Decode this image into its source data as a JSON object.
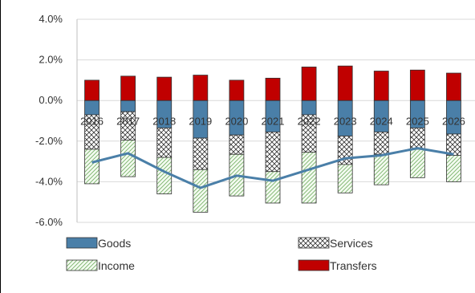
{
  "chart_data": {
    "type": "bar",
    "stacked": true,
    "categories": [
      "2016",
      "2017",
      "2018",
      "2019",
      "2020",
      "2021",
      "2022",
      "2023",
      "2024",
      "2025",
      "2026"
    ],
    "series": [
      {
        "name": "Goods",
        "kind": "bar",
        "color": "#4a7fa8",
        "pattern": "solid",
        "values": [
          -0.7,
          -0.55,
          -1.35,
          -1.85,
          -1.7,
          -1.55,
          -0.7,
          -1.75,
          -1.55,
          -1.35,
          -1.65
        ]
      },
      {
        "name": "Services",
        "kind": "bar",
        "color": "#333333",
        "pattern": "crosshatch",
        "values": [
          -1.7,
          -1.4,
          -1.45,
          -1.55,
          -0.95,
          -1.95,
          -1.85,
          -1.4,
          -1.1,
          -1.05,
          -1.05
        ]
      },
      {
        "name": "Income",
        "kind": "bar",
        "color": "#7ab36a",
        "pattern": "diagonal",
        "values": [
          -1.7,
          -1.8,
          -1.8,
          -2.1,
          -2.05,
          -1.55,
          -2.5,
          -1.4,
          -1.5,
          -1.4,
          -1.3
        ]
      },
      {
        "name": "Transfers",
        "kind": "bar",
        "color": "#c00000",
        "pattern": "solid",
        "values": [
          1.0,
          1.2,
          1.15,
          1.25,
          1.0,
          1.1,
          1.65,
          1.7,
          1.45,
          1.5,
          1.35
        ]
      },
      {
        "name": "",
        "kind": "line",
        "color": "#4a7fa8",
        "values": [
          -3.05,
          -2.6,
          -3.5,
          -4.3,
          -3.7,
          -3.95,
          -3.4,
          -2.85,
          -2.7,
          -2.35,
          -2.65
        ]
      }
    ],
    "y_ticks": [
      "4.0%",
      "2.0%",
      "0.0%",
      "-2.0%",
      "-4.0%",
      "-6.0%"
    ],
    "ylim": [
      -6,
      4
    ],
    "title": "",
    "xlabel": "",
    "ylabel": "",
    "grid": true,
    "legend_position": "bottom"
  }
}
